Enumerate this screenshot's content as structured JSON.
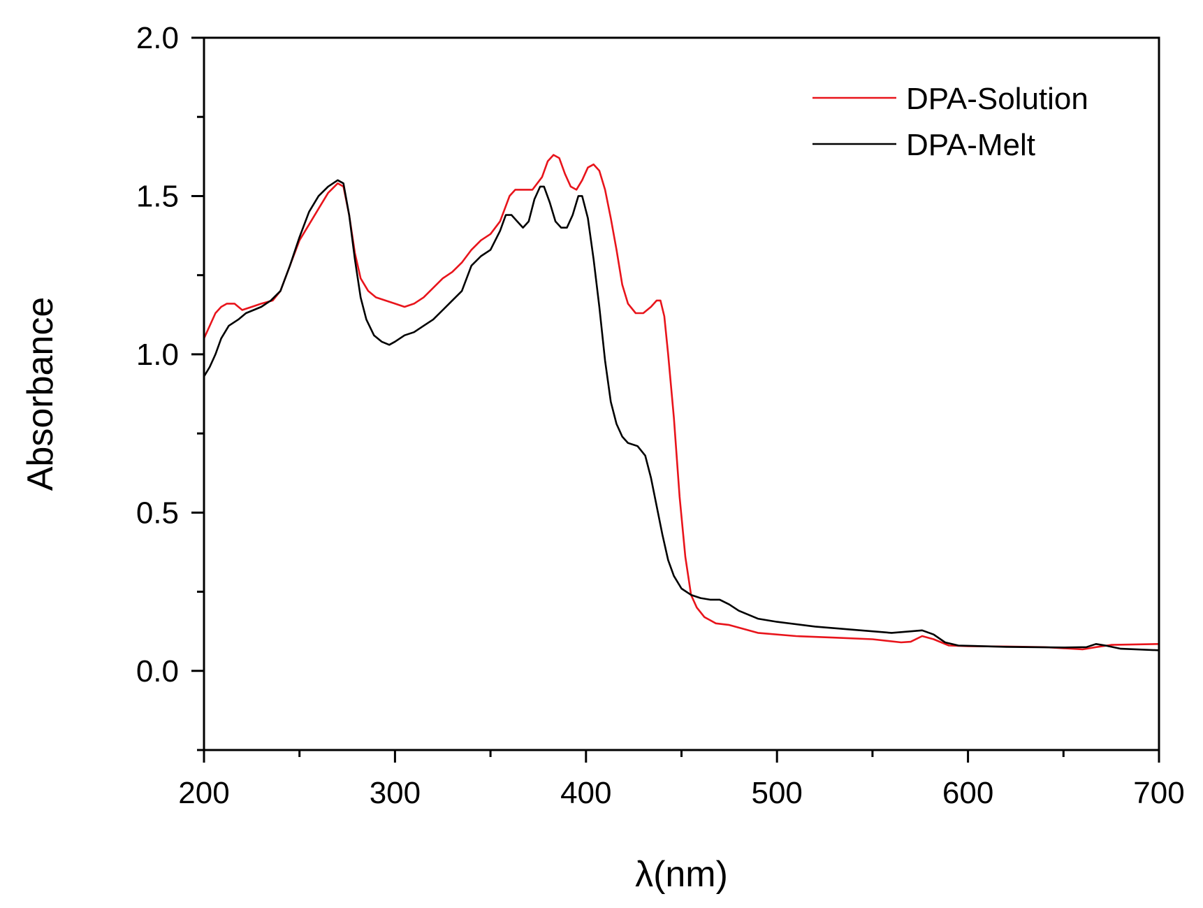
{
  "chart_data": {
    "type": "line",
    "title": "",
    "xlabel": "λ(nm)",
    "ylabel": "Absorbance",
    "xlim": [
      200,
      700
    ],
    "ylim": [
      -0.25,
      2.0
    ],
    "x_ticks": [
      200,
      300,
      400,
      500,
      600,
      700
    ],
    "x_tick_labels": [
      "200",
      "300",
      "400",
      "500",
      "600",
      "700"
    ],
    "x_minor_step": 50,
    "y_ticks": [
      0.0,
      0.5,
      1.0,
      1.5,
      2.0
    ],
    "y_tick_labels": [
      "0.0",
      "0.5",
      "1.0",
      "1.5",
      "2.0"
    ],
    "y_minor_step": 0.25,
    "grid": false,
    "legend_position": "top-right",
    "series": [
      {
        "name": "DPA-Solution",
        "color": "#e8141b",
        "points": [
          [
            200,
            1.05
          ],
          [
            203,
            1.09
          ],
          [
            206,
            1.13
          ],
          [
            209,
            1.15
          ],
          [
            212,
            1.16
          ],
          [
            216,
            1.16
          ],
          [
            220,
            1.14
          ],
          [
            225,
            1.15
          ],
          [
            230,
            1.16
          ],
          [
            236,
            1.17
          ],
          [
            240,
            1.2
          ],
          [
            245,
            1.28
          ],
          [
            250,
            1.36
          ],
          [
            255,
            1.41
          ],
          [
            260,
            1.46
          ],
          [
            265,
            1.51
          ],
          [
            270,
            1.54
          ],
          [
            273,
            1.53
          ],
          [
            276,
            1.44
          ],
          [
            279,
            1.32
          ],
          [
            282,
            1.24
          ],
          [
            286,
            1.2
          ],
          [
            290,
            1.18
          ],
          [
            295,
            1.17
          ],
          [
            300,
            1.16
          ],
          [
            305,
            1.15
          ],
          [
            310,
            1.16
          ],
          [
            315,
            1.18
          ],
          [
            320,
            1.21
          ],
          [
            325,
            1.24
          ],
          [
            330,
            1.26
          ],
          [
            335,
            1.29
          ],
          [
            340,
            1.33
          ],
          [
            345,
            1.36
          ],
          [
            350,
            1.38
          ],
          [
            355,
            1.42
          ],
          [
            360,
            1.5
          ],
          [
            363,
            1.52
          ],
          [
            367,
            1.52
          ],
          [
            372,
            1.52
          ],
          [
            377,
            1.56
          ],
          [
            380,
            1.61
          ],
          [
            383,
            1.63
          ],
          [
            386,
            1.62
          ],
          [
            389,
            1.57
          ],
          [
            392,
            1.53
          ],
          [
            395,
            1.52
          ],
          [
            398,
            1.55
          ],
          [
            401,
            1.59
          ],
          [
            404,
            1.6
          ],
          [
            407,
            1.58
          ],
          [
            410,
            1.52
          ],
          [
            413,
            1.43
          ],
          [
            416,
            1.33
          ],
          [
            419,
            1.22
          ],
          [
            422,
            1.16
          ],
          [
            426,
            1.13
          ],
          [
            430,
            1.13
          ],
          [
            434,
            1.15
          ],
          [
            437,
            1.17
          ],
          [
            439,
            1.17
          ],
          [
            441,
            1.12
          ],
          [
            443,
            1.0
          ],
          [
            446,
            0.8
          ],
          [
            449,
            0.55
          ],
          [
            452,
            0.36
          ],
          [
            455,
            0.24
          ],
          [
            458,
            0.2
          ],
          [
            462,
            0.17
          ],
          [
            468,
            0.15
          ],
          [
            475,
            0.145
          ],
          [
            490,
            0.12
          ],
          [
            510,
            0.11
          ],
          [
            530,
            0.105
          ],
          [
            550,
            0.1
          ],
          [
            565,
            0.09
          ],
          [
            570,
            0.092
          ],
          [
            576,
            0.11
          ],
          [
            582,
            0.1
          ],
          [
            590,
            0.08
          ],
          [
            600,
            0.078
          ],
          [
            620,
            0.077
          ],
          [
            640,
            0.075
          ],
          [
            660,
            0.068
          ],
          [
            667,
            0.075
          ],
          [
            675,
            0.082
          ],
          [
            700,
            0.085
          ]
        ]
      },
      {
        "name": "DPA-Melt",
        "color": "#000000",
        "points": [
          [
            200,
            0.93
          ],
          [
            203,
            0.96
          ],
          [
            206,
            1.0
          ],
          [
            209,
            1.05
          ],
          [
            213,
            1.09
          ],
          [
            218,
            1.11
          ],
          [
            222,
            1.13
          ],
          [
            226,
            1.14
          ],
          [
            230,
            1.15
          ],
          [
            235,
            1.17
          ],
          [
            240,
            1.2
          ],
          [
            245,
            1.28
          ],
          [
            250,
            1.37
          ],
          [
            255,
            1.45
          ],
          [
            260,
            1.5
          ],
          [
            265,
            1.53
          ],
          [
            270,
            1.55
          ],
          [
            273,
            1.54
          ],
          [
            276,
            1.44
          ],
          [
            279,
            1.3
          ],
          [
            282,
            1.18
          ],
          [
            285,
            1.11
          ],
          [
            289,
            1.06
          ],
          [
            293,
            1.04
          ],
          [
            297,
            1.03
          ],
          [
            300,
            1.04
          ],
          [
            305,
            1.06
          ],
          [
            310,
            1.07
          ],
          [
            315,
            1.09
          ],
          [
            320,
            1.11
          ],
          [
            325,
            1.14
          ],
          [
            330,
            1.17
          ],
          [
            335,
            1.2
          ],
          [
            340,
            1.28
          ],
          [
            345,
            1.31
          ],
          [
            350,
            1.33
          ],
          [
            355,
            1.39
          ],
          [
            358,
            1.44
          ],
          [
            361,
            1.44
          ],
          [
            364,
            1.42
          ],
          [
            367,
            1.4
          ],
          [
            370,
            1.42
          ],
          [
            373,
            1.49
          ],
          [
            376,
            1.53
          ],
          [
            378,
            1.53
          ],
          [
            381,
            1.48
          ],
          [
            384,
            1.42
          ],
          [
            387,
            1.4
          ],
          [
            390,
            1.4
          ],
          [
            393,
            1.44
          ],
          [
            396,
            1.5
          ],
          [
            398,
            1.5
          ],
          [
            401,
            1.43
          ],
          [
            404,
            1.3
          ],
          [
            407,
            1.15
          ],
          [
            410,
            0.98
          ],
          [
            413,
            0.85
          ],
          [
            416,
            0.78
          ],
          [
            419,
            0.74
          ],
          [
            422,
            0.72
          ],
          [
            427,
            0.71
          ],
          [
            431,
            0.68
          ],
          [
            434,
            0.61
          ],
          [
            437,
            0.52
          ],
          [
            440,
            0.43
          ],
          [
            443,
            0.35
          ],
          [
            446,
            0.3
          ],
          [
            450,
            0.26
          ],
          [
            455,
            0.24
          ],
          [
            460,
            0.23
          ],
          [
            465,
            0.225
          ],
          [
            470,
            0.225
          ],
          [
            475,
            0.21
          ],
          [
            480,
            0.19
          ],
          [
            490,
            0.165
          ],
          [
            500,
            0.155
          ],
          [
            520,
            0.14
          ],
          [
            540,
            0.13
          ],
          [
            560,
            0.12
          ],
          [
            570,
            0.125
          ],
          [
            576,
            0.128
          ],
          [
            582,
            0.115
          ],
          [
            588,
            0.09
          ],
          [
            595,
            0.08
          ],
          [
            620,
            0.076
          ],
          [
            650,
            0.074
          ],
          [
            662,
            0.075
          ],
          [
            667,
            0.085
          ],
          [
            672,
            0.08
          ],
          [
            680,
            0.07
          ],
          [
            700,
            0.065
          ]
        ]
      }
    ]
  }
}
